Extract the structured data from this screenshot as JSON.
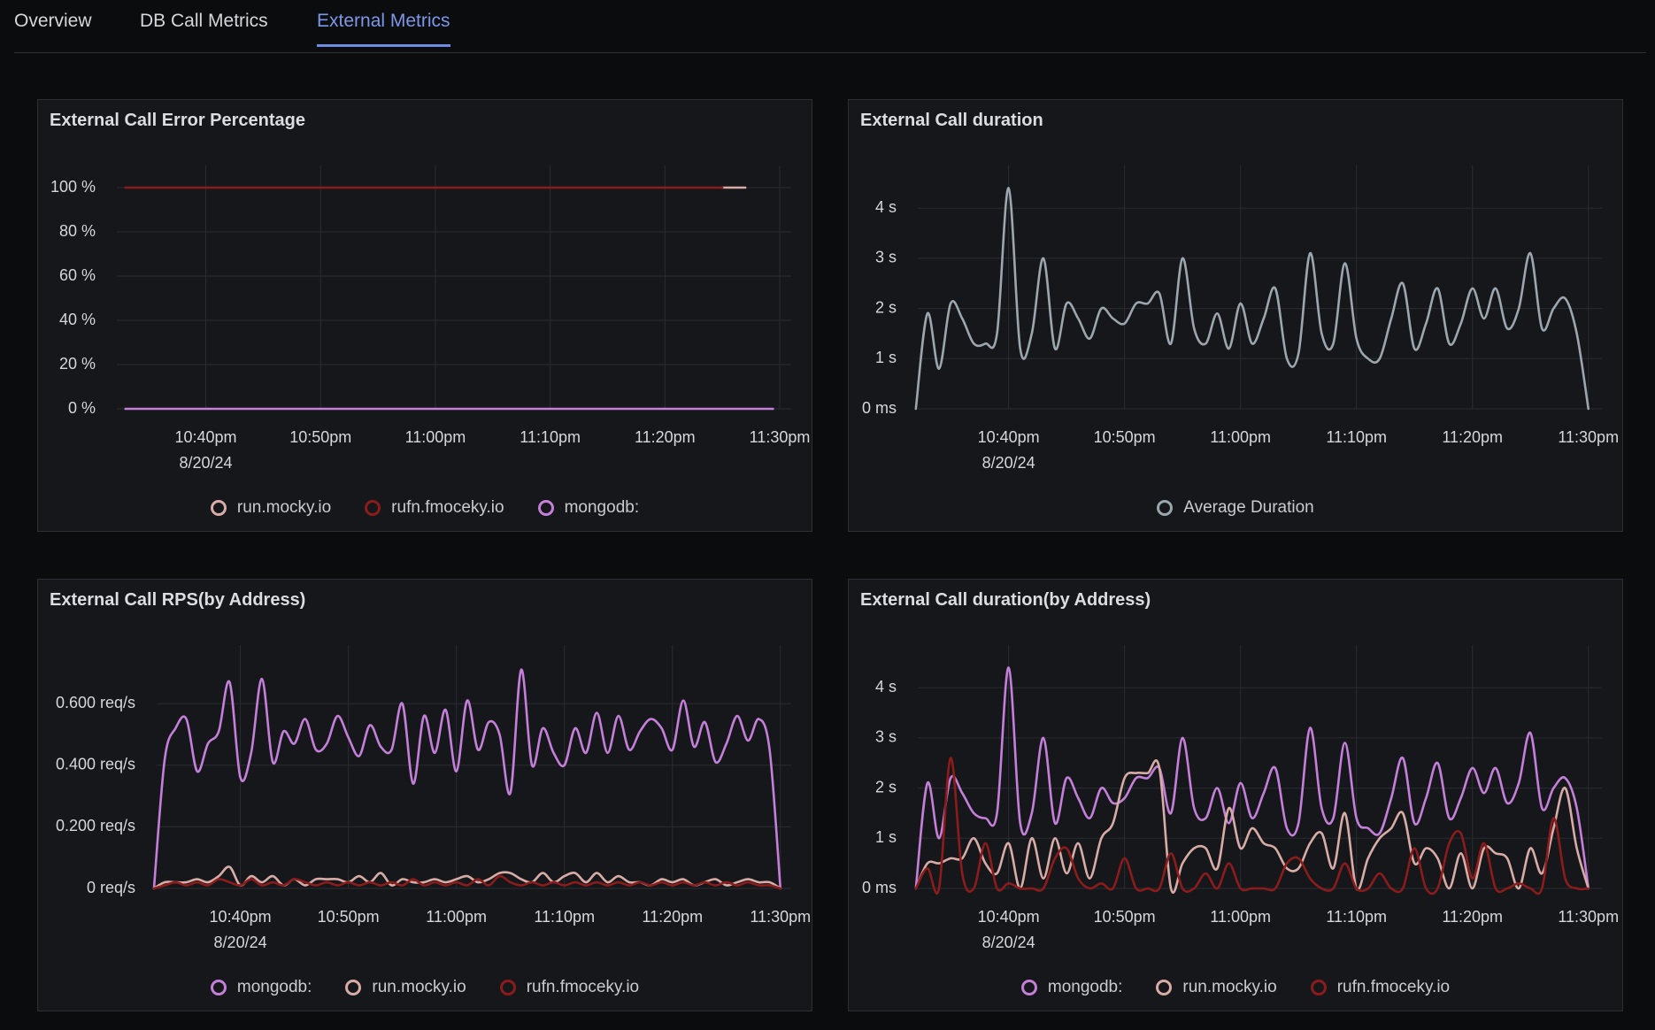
{
  "tabs": [
    {
      "label": "Overview"
    },
    {
      "label": "DB Call Metrics"
    },
    {
      "label": "External Metrics",
      "active": true
    }
  ],
  "chart_data": [
    {
      "type": "line",
      "title": "External Call Error Percentage",
      "x": [
        "2024-08-20T22:33",
        "2024-08-20T23:25",
        "2024-08-20T23:27",
        "2024-08-20T23:29"
      ],
      "xlim": [
        "2024-08-20T22:32:15",
        "2024-08-20T23:31"
      ],
      "xticks": [
        {
          "value": "2024-08-20T22:40",
          "label": "10:40pm",
          "sublabel": "8/20/24"
        },
        {
          "value": "2024-08-20T22:50",
          "label": "10:50pm"
        },
        {
          "value": "2024-08-20T23:00",
          "label": "11:00pm"
        },
        {
          "value": "2024-08-20T23:10",
          "label": "11:10pm"
        },
        {
          "value": "2024-08-20T23:20",
          "label": "11:20pm"
        },
        {
          "value": "2024-08-20T23:30",
          "label": "11:30pm"
        }
      ],
      "ylim": [
        0,
        110
      ],
      "yticks": [
        {
          "value": 0,
          "label": "0 %"
        },
        {
          "value": 20,
          "label": "20 %"
        },
        {
          "value": 40,
          "label": "40 %"
        },
        {
          "value": 60,
          "label": "60 %"
        },
        {
          "value": 80,
          "label": "80 %"
        },
        {
          "value": 100,
          "label": "100 %"
        }
      ],
      "grid": true,
      "series": [
        {
          "name": "run.mocky.io",
          "color": "#d8aca6",
          "values": [
            null,
            100,
            100,
            null
          ]
        },
        {
          "name": "rufn.fmoceky.io",
          "color": "#8c1c1c",
          "values": [
            100,
            100,
            null,
            null
          ]
        },
        {
          "name": "mongodb:",
          "color": "#c47fd9",
          "values": [
            0,
            0,
            0,
            0
          ]
        }
      ]
    },
    {
      "type": "line",
      "title": "External Call duration",
      "x": [
        "2024-08-20T22:32",
        "2024-08-20T22:33",
        "2024-08-20T22:34",
        "2024-08-20T22:35",
        "2024-08-20T22:36",
        "2024-08-20T22:37",
        "2024-08-20T22:38",
        "2024-08-20T22:39",
        "2024-08-20T22:40",
        "2024-08-20T22:41",
        "2024-08-20T22:42",
        "2024-08-20T22:43",
        "2024-08-20T22:44",
        "2024-08-20T22:45",
        "2024-08-20T22:46",
        "2024-08-20T22:47",
        "2024-08-20T22:48",
        "2024-08-20T22:49",
        "2024-08-20T22:50",
        "2024-08-20T22:51",
        "2024-08-20T22:52",
        "2024-08-20T22:53",
        "2024-08-20T22:54",
        "2024-08-20T22:55",
        "2024-08-20T22:56",
        "2024-08-20T22:57",
        "2024-08-20T22:58",
        "2024-08-20T22:59",
        "2024-08-20T23:00",
        "2024-08-20T23:01",
        "2024-08-20T23:02",
        "2024-08-20T23:03",
        "2024-08-20T23:04",
        "2024-08-20T23:05",
        "2024-08-20T23:06",
        "2024-08-20T23:07",
        "2024-08-20T23:08",
        "2024-08-20T23:09",
        "2024-08-20T23:10",
        "2024-08-20T23:11",
        "2024-08-20T23:12",
        "2024-08-20T23:13",
        "2024-08-20T23:14",
        "2024-08-20T23:15",
        "2024-08-20T23:16",
        "2024-08-20T23:17",
        "2024-08-20T23:18",
        "2024-08-20T23:19",
        "2024-08-20T23:20",
        "2024-08-20T23:21",
        "2024-08-20T23:22",
        "2024-08-20T23:23",
        "2024-08-20T23:24",
        "2024-08-20T23:25",
        "2024-08-20T23:26",
        "2024-08-20T23:27",
        "2024-08-20T23:28",
        "2024-08-20T23:29",
        "2024-08-20T23:30"
      ],
      "xlim": [
        "2024-08-20T22:32:10",
        "2024-08-20T23:31:10"
      ],
      "xticks": [
        {
          "value": "2024-08-20T22:40",
          "label": "10:40pm",
          "sublabel": "8/20/24"
        },
        {
          "value": "2024-08-20T22:50",
          "label": "10:50pm"
        },
        {
          "value": "2024-08-20T23:00",
          "label": "11:00pm"
        },
        {
          "value": "2024-08-20T23:10",
          "label": "11:10pm"
        },
        {
          "value": "2024-08-20T23:20",
          "label": "11:20pm"
        },
        {
          "value": "2024-08-20T23:30",
          "label": "11:30pm"
        }
      ],
      "ylim": [
        0,
        4.85
      ],
      "yticks": [
        {
          "value": 0,
          "label": "0 ms"
        },
        {
          "value": 1,
          "label": "1 s"
        },
        {
          "value": 2,
          "label": "2 s"
        },
        {
          "value": 3,
          "label": "3 s"
        },
        {
          "value": 4,
          "label": "4 s"
        }
      ],
      "grid": true,
      "series": [
        {
          "name": "Average Duration",
          "color": "#9ba6ae",
          "values": [
            0,
            1.9,
            0.8,
            2.1,
            1.8,
            1.3,
            1.3,
            1.5,
            4.4,
            1.2,
            1.5,
            3.0,
            1.2,
            2.1,
            1.8,
            1.4,
            2.0,
            1.8,
            1.7,
            2.1,
            2.1,
            2.3,
            1.3,
            3.0,
            1.6,
            1.3,
            1.9,
            1.2,
            2.1,
            1.3,
            1.8,
            2.4,
            1.0,
            1.1,
            3.1,
            1.5,
            1.3,
            2.9,
            1.4,
            1.0,
            1.0,
            1.8,
            2.5,
            1.2,
            1.7,
            2.4,
            1.3,
            1.7,
            2.4,
            1.8,
            2.4,
            1.6,
            2.0,
            3.1,
            1.6,
            2.0,
            2.2,
            1.5,
            0
          ]
        }
      ]
    },
    {
      "type": "line",
      "title": "External Call RPS(by Address)",
      "x": [
        "2024-08-20T22:32",
        "2024-08-20T22:33",
        "2024-08-20T22:34",
        "2024-08-20T22:35",
        "2024-08-20T22:36",
        "2024-08-20T22:37",
        "2024-08-20T22:38",
        "2024-08-20T22:39",
        "2024-08-20T22:40",
        "2024-08-20T22:41",
        "2024-08-20T22:42",
        "2024-08-20T22:43",
        "2024-08-20T22:44",
        "2024-08-20T22:45",
        "2024-08-20T22:46",
        "2024-08-20T22:47",
        "2024-08-20T22:48",
        "2024-08-20T22:49",
        "2024-08-20T22:50",
        "2024-08-20T22:51",
        "2024-08-20T22:52",
        "2024-08-20T22:53",
        "2024-08-20T22:54",
        "2024-08-20T22:55",
        "2024-08-20T22:56",
        "2024-08-20T22:57",
        "2024-08-20T22:58",
        "2024-08-20T22:59",
        "2024-08-20T23:00",
        "2024-08-20T23:01",
        "2024-08-20T23:02",
        "2024-08-20T23:03",
        "2024-08-20T23:04",
        "2024-08-20T23:05",
        "2024-08-20T23:06",
        "2024-08-20T23:07",
        "2024-08-20T23:08",
        "2024-08-20T23:09",
        "2024-08-20T23:10",
        "2024-08-20T23:11",
        "2024-08-20T23:12",
        "2024-08-20T23:13",
        "2024-08-20T23:14",
        "2024-08-20T23:15",
        "2024-08-20T23:16",
        "2024-08-20T23:17",
        "2024-08-20T23:18",
        "2024-08-20T23:19",
        "2024-08-20T23:20",
        "2024-08-20T23:21",
        "2024-08-20T23:22",
        "2024-08-20T23:23",
        "2024-08-20T23:24",
        "2024-08-20T23:25",
        "2024-08-20T23:26",
        "2024-08-20T23:27",
        "2024-08-20T23:28",
        "2024-08-20T23:29",
        "2024-08-20T23:30"
      ],
      "xlim": [
        "2024-08-20T22:32:15",
        "2024-08-20T23:31"
      ],
      "xticks": [
        {
          "value": "2024-08-20T22:40",
          "label": "10:40pm",
          "sublabel": "8/20/24"
        },
        {
          "value": "2024-08-20T22:50",
          "label": "10:50pm"
        },
        {
          "value": "2024-08-20T23:00",
          "label": "11:00pm"
        },
        {
          "value": "2024-08-20T23:10",
          "label": "11:10pm"
        },
        {
          "value": "2024-08-20T23:20",
          "label": "11:20pm"
        },
        {
          "value": "2024-08-20T23:30",
          "label": "11:30pm"
        }
      ],
      "ylim": [
        0,
        0.79
      ],
      "yticks": [
        {
          "value": 0,
          "label": "0 req/s"
        },
        {
          "value": 0.2,
          "label": "0.200 req/s"
        },
        {
          "value": 0.4,
          "label": "0.400 req/s"
        },
        {
          "value": 0.6,
          "label": "0.600 req/s"
        }
      ],
      "grid": true,
      "series": [
        {
          "name": "mongodb:",
          "color": "#c47fd9",
          "values": [
            0,
            0.42,
            0.52,
            0.55,
            0.38,
            0.47,
            0.51,
            0.67,
            0.36,
            0.44,
            0.68,
            0.41,
            0.51,
            0.47,
            0.55,
            0.45,
            0.47,
            0.56,
            0.49,
            0.43,
            0.53,
            0.46,
            0.45,
            0.6,
            0.34,
            0.56,
            0.44,
            0.58,
            0.38,
            0.61,
            0.45,
            0.54,
            0.5,
            0.31,
            0.71,
            0.4,
            0.52,
            0.44,
            0.4,
            0.52,
            0.44,
            0.57,
            0.44,
            0.56,
            0.45,
            0.51,
            0.55,
            0.52,
            0.45,
            0.61,
            0.46,
            0.54,
            0.41,
            0.47,
            0.56,
            0.48,
            0.55,
            0.45,
            0
          ]
        },
        {
          "name": "run.mocky.io",
          "color": "#d8aca6",
          "values": [
            0,
            0.02,
            0.02,
            0.02,
            0.03,
            0.02,
            0.04,
            0.07,
            0.01,
            0.04,
            0.02,
            0.04,
            0.01,
            0.03,
            0.01,
            0.03,
            0.03,
            0.03,
            0.02,
            0.04,
            0.02,
            0.05,
            0.01,
            0.03,
            0.02,
            0.02,
            0.03,
            0.02,
            0.03,
            0.04,
            0.02,
            0.03,
            0.05,
            0.05,
            0.03,
            0.02,
            0.05,
            0.02,
            0.04,
            0.05,
            0.02,
            0.05,
            0.02,
            0.04,
            0.02,
            0.02,
            0.01,
            0.03,
            0.02,
            0.03,
            0.01,
            0.02,
            0.03,
            0.01,
            0.02,
            0.03,
            0.02,
            0.02,
            0
          ]
        },
        {
          "name": "rufn.fmoceky.io",
          "color": "#8c1c1c",
          "values": [
            0,
            0.01,
            0.02,
            0.01,
            0.02,
            0.01,
            0.03,
            0.02,
            0.01,
            0.03,
            0.01,
            0.02,
            0.01,
            0.03,
            0.02,
            0.01,
            0.02,
            0.01,
            0.02,
            0.01,
            0.02,
            0.01,
            0.02,
            0.01,
            0.03,
            0.01,
            0.02,
            0.01,
            0.02,
            0.01,
            0.03,
            0.01,
            0.04,
            0.02,
            0.01,
            0.02,
            0.01,
            0.02,
            0.01,
            0.02,
            0.01,
            0.02,
            0.01,
            0.02,
            0.01,
            0.02,
            0.01,
            0.02,
            0.01,
            0.02,
            0.01,
            0.02,
            0.01,
            0.02,
            0.01,
            0.02,
            0.01,
            0.01,
            0
          ]
        }
      ]
    },
    {
      "type": "line",
      "title": "External Call duration(by Address)",
      "x": [
        "2024-08-20T22:32",
        "2024-08-20T22:33",
        "2024-08-20T22:34",
        "2024-08-20T22:35",
        "2024-08-20T22:36",
        "2024-08-20T22:37",
        "2024-08-20T22:38",
        "2024-08-20T22:39",
        "2024-08-20T22:40",
        "2024-08-20T22:41",
        "2024-08-20T22:42",
        "2024-08-20T22:43",
        "2024-08-20T22:44",
        "2024-08-20T22:45",
        "2024-08-20T22:46",
        "2024-08-20T22:47",
        "2024-08-20T22:48",
        "2024-08-20T22:49",
        "2024-08-20T22:50",
        "2024-08-20T22:51",
        "2024-08-20T22:52",
        "2024-08-20T22:53",
        "2024-08-20T22:54",
        "2024-08-20T22:55",
        "2024-08-20T22:56",
        "2024-08-20T22:57",
        "2024-08-20T22:58",
        "2024-08-20T22:59",
        "2024-08-20T23:00",
        "2024-08-20T23:01",
        "2024-08-20T23:02",
        "2024-08-20T23:03",
        "2024-08-20T23:04",
        "2024-08-20T23:05",
        "2024-08-20T23:06",
        "2024-08-20T23:07",
        "2024-08-20T23:08",
        "2024-08-20T23:09",
        "2024-08-20T23:10",
        "2024-08-20T23:11",
        "2024-08-20T23:12",
        "2024-08-20T23:13",
        "2024-08-20T23:14",
        "2024-08-20T23:15",
        "2024-08-20T23:16",
        "2024-08-20T23:17",
        "2024-08-20T23:18",
        "2024-08-20T23:19",
        "2024-08-20T23:20",
        "2024-08-20T23:21",
        "2024-08-20T23:22",
        "2024-08-20T23:23",
        "2024-08-20T23:24",
        "2024-08-20T23:25",
        "2024-08-20T23:26",
        "2024-08-20T23:27",
        "2024-08-20T23:28",
        "2024-08-20T23:29",
        "2024-08-20T23:30"
      ],
      "xlim": [
        "2024-08-20T22:32:10",
        "2024-08-20T23:31:10"
      ],
      "xticks": [
        {
          "value": "2024-08-20T22:40",
          "label": "10:40pm",
          "sublabel": "8/20/24"
        },
        {
          "value": "2024-08-20T22:50",
          "label": "10:50pm"
        },
        {
          "value": "2024-08-20T23:00",
          "label": "11:00pm"
        },
        {
          "value": "2024-08-20T23:10",
          "label": "11:10pm"
        },
        {
          "value": "2024-08-20T23:20",
          "label": "11:20pm"
        },
        {
          "value": "2024-08-20T23:30",
          "label": "11:30pm"
        }
      ],
      "ylim": [
        0,
        4.85
      ],
      "yticks": [
        {
          "value": 0,
          "label": "0 ms"
        },
        {
          "value": 1,
          "label": "1 s"
        },
        {
          "value": 2,
          "label": "2 s"
        },
        {
          "value": 3,
          "label": "3 s"
        },
        {
          "value": 4,
          "label": "4 s"
        }
      ],
      "grid": true,
      "series": [
        {
          "name": "mongodb:",
          "color": "#c47fd9",
          "values": [
            0,
            2.1,
            1.0,
            2.2,
            1.9,
            1.5,
            1.4,
            1.5,
            4.4,
            1.3,
            1.5,
            3.0,
            1.3,
            2.2,
            1.8,
            1.4,
            2.0,
            1.7,
            1.8,
            2.2,
            2.2,
            2.4,
            1.5,
            3.0,
            1.6,
            1.4,
            2.0,
            1.3,
            2.1,
            1.4,
            1.9,
            2.4,
            1.2,
            1.3,
            3.2,
            1.6,
            1.4,
            2.9,
            1.4,
            1.2,
            1.1,
            1.8,
            2.6,
            1.3,
            1.8,
            2.5,
            1.4,
            1.8,
            2.4,
            1.9,
            2.4,
            1.7,
            2.1,
            3.1,
            1.6,
            2.0,
            2.2,
            1.6,
            0
          ]
        },
        {
          "name": "run.mocky.io",
          "color": "#d8aca6",
          "values": [
            0,
            0.5,
            0.5,
            0.6,
            0.6,
            1.0,
            0.5,
            0.3,
            0.9,
            0,
            1.0,
            0.2,
            1.0,
            0.3,
            0.9,
            0.2,
            1.0,
            1.3,
            2.2,
            2.3,
            2.3,
            2.4,
            0,
            0.5,
            0.8,
            0.8,
            0.4,
            1.6,
            0.8,
            1.2,
            0.9,
            0.8,
            0.4,
            0.4,
            0.9,
            1.1,
            0.4,
            1.5,
            0,
            0.6,
            1.0,
            1.2,
            1.5,
            0.5,
            0.8,
            0.6,
            0,
            0.7,
            0,
            0.8,
            0.7,
            0.6,
            0,
            0.8,
            0.3,
            1.2,
            2.0,
            0.8,
            0
          ]
        },
        {
          "name": "rufn.fmoceky.io",
          "color": "#8c1c1c",
          "values": [
            0,
            0.4,
            0,
            2.6,
            0.3,
            0,
            0.9,
            0,
            0.1,
            0,
            0,
            0,
            0.6,
            0.8,
            0.2,
            0,
            0.1,
            0,
            0.6,
            0,
            0,
            0,
            0.7,
            0,
            0,
            0.3,
            0,
            0.5,
            0,
            0,
            0,
            0,
            0.5,
            0.6,
            0.2,
            0,
            0,
            0.5,
            0,
            0,
            0.3,
            0,
            0,
            0.8,
            0,
            0,
            0.9,
            1.1,
            0.2,
            0.9,
            0,
            0,
            0.1,
            0,
            0,
            1.4,
            0.2,
            0,
            0
          ]
        }
      ]
    }
  ]
}
